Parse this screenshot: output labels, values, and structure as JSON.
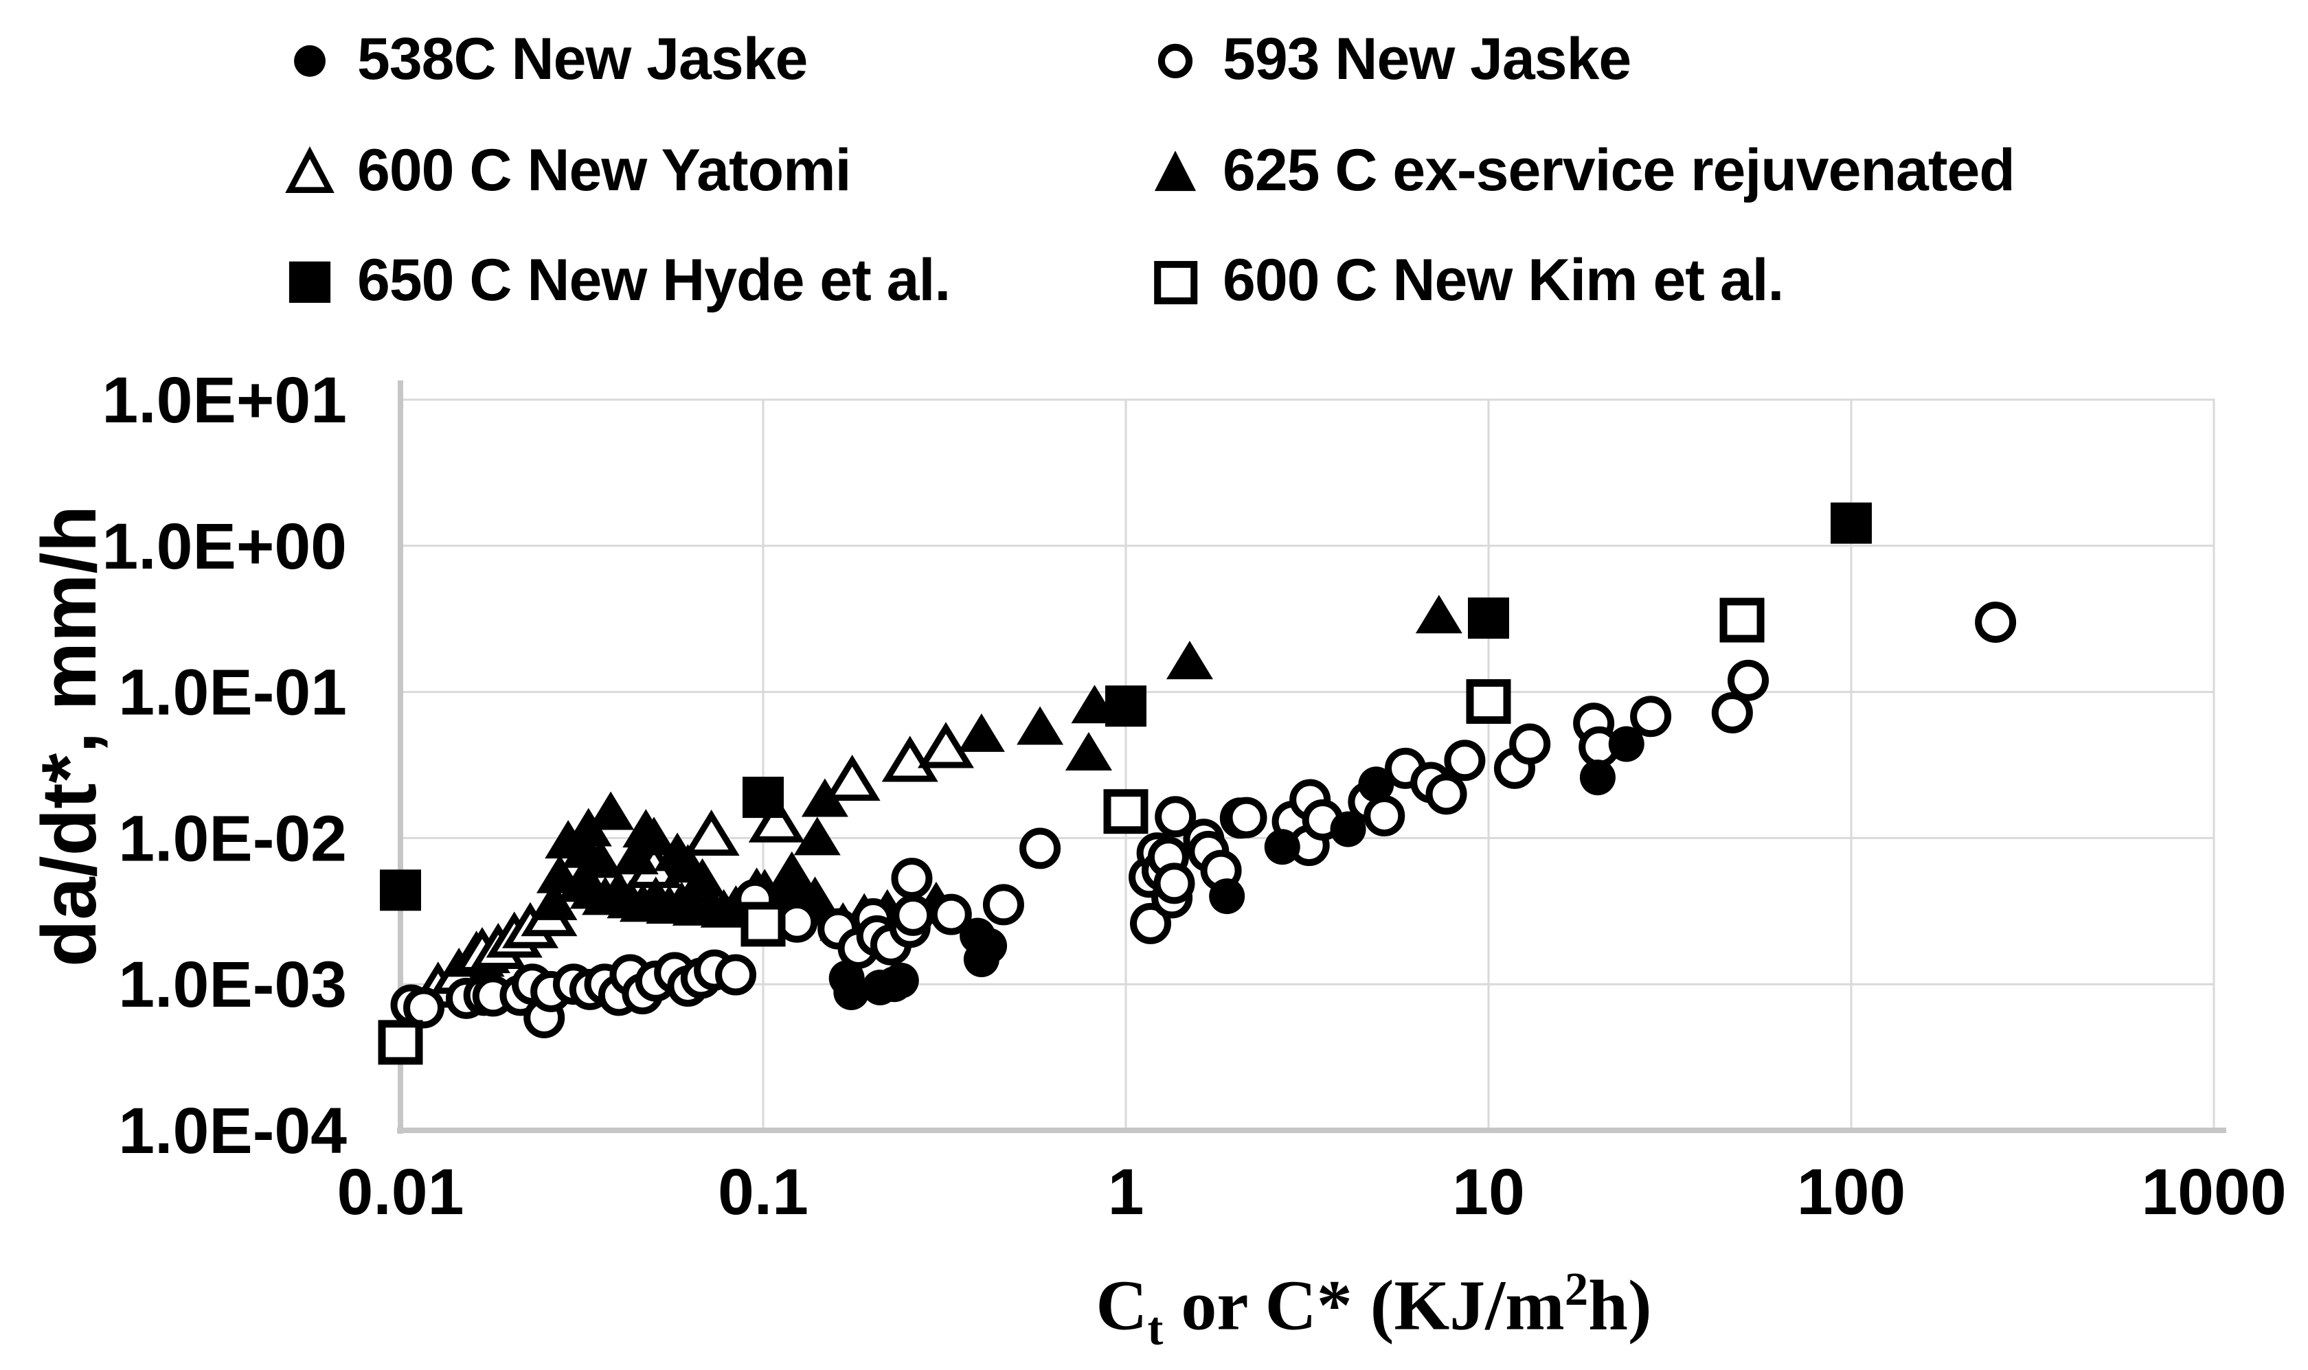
{
  "legend": {
    "items": [
      {
        "label": "538C New Jaske",
        "marker": "filled-circle"
      },
      {
        "label": "593 New Jaske",
        "marker": "open-circle"
      },
      {
        "label": "600 C New Yatomi",
        "marker": "open-triangle"
      },
      {
        "label": "625 C ex-service rejuvenated",
        "marker": "filled-triangle"
      },
      {
        "label": "650 C New Hyde et al.",
        "marker": "filled-square"
      },
      {
        "label": "600 C New Kim et al.",
        "marker": "open-square"
      }
    ]
  },
  "chart_data": {
    "type": "scatter",
    "title": "",
    "x_axis": {
      "scale": "log",
      "range": [
        0.01,
        1000
      ],
      "ticks": [
        "0.01",
        "0.1",
        "1",
        "10",
        "100",
        "1000"
      ],
      "title_parts": {
        "base": "C",
        "sub": "t",
        "mid": " or C* (KJ/m",
        "sup": "2",
        "end": "h)"
      }
    },
    "y_axis": {
      "scale": "log",
      "range": [
        0.0001,
        10
      ],
      "ticks": [
        "1.0E+01",
        "1.0E+00",
        "1.0E-01",
        "1.0E-02",
        "1.0E-03",
        "1.0E-04"
      ],
      "title": "da/dt*, mm/h"
    },
    "grid": true,
    "legend_position": "top",
    "colors": {
      "marker": "#000000",
      "gridline": "#d9d9d9",
      "axis_line": "#c6c6c6",
      "text": "#000000"
    },
    "series": [
      {
        "name": "538C New Jaske",
        "marker": "filled-circle",
        "points": [
          [
            0.17,
            0.0011
          ],
          [
            0.175,
            0.00088
          ],
          [
            0.21,
            0.00095
          ],
          [
            0.23,
            0.001
          ],
          [
            0.24,
            0.00106
          ],
          [
            0.39,
            0.00215
          ],
          [
            0.4,
            0.00148
          ],
          [
            0.42,
            0.00183
          ],
          [
            1.9,
            0.004
          ],
          [
            2.7,
            0.0087
          ],
          [
            4.1,
            0.0115
          ],
          [
            4.9,
            0.0233
          ],
          [
            20,
            0.026
          ],
          [
            24,
            0.044
          ]
        ]
      },
      {
        "name": "593 New Jaske",
        "marker": "open-circle",
        "points": [
          [
            0.0107,
            0.00072
          ],
          [
            0.0116,
            0.00069
          ],
          [
            0.0152,
            0.0008
          ],
          [
            0.017,
            0.00084
          ],
          [
            0.018,
            0.00083
          ],
          [
            0.0214,
            0.00084
          ],
          [
            0.0231,
            0.001
          ],
          [
            0.0249,
            0.00059
          ],
          [
            0.026,
            0.00089
          ],
          [
            0.03,
            0.001
          ],
          [
            0.0333,
            0.00092
          ],
          [
            0.0366,
            0.001
          ],
          [
            0.04,
            0.00084
          ],
          [
            0.043,
            0.00116
          ],
          [
            0.0465,
            0.00086
          ],
          [
            0.0506,
            0.00105
          ],
          [
            0.057,
            0.0012
          ],
          [
            0.062,
            0.00097
          ],
          [
            0.0675,
            0.0011
          ],
          [
            0.0734,
            0.00125
          ],
          [
            0.084,
            0.00116
          ],
          [
            0.095,
            0.0038
          ],
          [
            0.124,
            0.00266
          ],
          [
            0.161,
            0.00239
          ],
          [
            0.183,
            0.00176
          ],
          [
            0.201,
            0.0028
          ],
          [
            0.206,
            0.00214
          ],
          [
            0.225,
            0.00186
          ],
          [
            0.254,
            0.00245
          ],
          [
            0.257,
            0.0053
          ],
          [
            0.259,
            0.00296
          ],
          [
            0.33,
            0.003
          ],
          [
            0.46,
            0.0035
          ],
          [
            0.58,
            0.0085
          ],
          [
            1.16,
            0.0054
          ],
          [
            1.17,
            0.0026
          ],
          [
            1.22,
            0.0079
          ],
          [
            1.26,
            0.006
          ],
          [
            1.31,
            0.0074
          ],
          [
            1.34,
            0.0039
          ],
          [
            1.36,
            0.0049
          ],
          [
            1.37,
            0.014
          ],
          [
            1.64,
            0.0098
          ],
          [
            1.69,
            0.0081
          ],
          [
            1.83,
            0.006
          ],
          [
            2.07,
            0.0137
          ],
          [
            2.15,
            0.0138
          ],
          [
            2.88,
            0.013
          ],
          [
            3.2,
            0.0089
          ],
          [
            3.22,
            0.0183
          ],
          [
            3.49,
            0.0133
          ],
          [
            4.67,
            0.0177
          ],
          [
            5.16,
            0.0142
          ],
          [
            5.9,
            0.03
          ],
          [
            6.94,
            0.024
          ],
          [
            7.65,
            0.02
          ],
          [
            8.6,
            0.034
          ],
          [
            11.8,
            0.03
          ],
          [
            13,
            0.044
          ],
          [
            19.5,
            0.061
          ],
          [
            20.2,
            0.042
          ],
          [
            28,
            0.068
          ],
          [
            47,
            0.072
          ],
          [
            52,
            0.12
          ],
          [
            250,
            0.3
          ]
        ]
      },
      {
        "name": "600 C New Yatomi",
        "marker": "open-triangle",
        "points": [
          [
            0.0127,
            0.00094
          ],
          [
            0.0145,
            0.00117
          ],
          [
            0.0162,
            0.00153
          ],
          [
            0.0168,
            0.00162
          ],
          [
            0.0186,
            0.00173
          ],
          [
            0.0206,
            0.00207
          ],
          [
            0.0228,
            0.0024
          ],
          [
            0.0257,
            0.0029
          ],
          [
            0.05,
            0.0062
          ],
          [
            0.072,
            0.0103
          ],
          [
            0.109,
            0.0127
          ],
          [
            0.176,
            0.0245
          ],
          [
            0.254,
            0.033
          ],
          [
            0.319,
            0.041
          ]
        ]
      },
      {
        "name": "625 C ex-service rejuvenated",
        "marker": "filled-triangle",
        "points": [
          [
            0.0265,
            0.0036
          ],
          [
            0.0275,
            0.0055
          ],
          [
            0.029,
            0.0095
          ],
          [
            0.0314,
            0.0048
          ],
          [
            0.0323,
            0.0082
          ],
          [
            0.033,
            0.0115
          ],
          [
            0.034,
            0.0043
          ],
          [
            0.0356,
            0.007
          ],
          [
            0.0367,
            0.0039
          ],
          [
            0.038,
            0.0149
          ],
          [
            0.04,
            0.0043
          ],
          [
            0.043,
            0.0037
          ],
          [
            0.0444,
            0.0074
          ],
          [
            0.0466,
            0.0035
          ],
          [
            0.0475,
            0.0113
          ],
          [
            0.05,
            0.01
          ],
          [
            0.0506,
            0.0039
          ],
          [
            0.0551,
            0.0034
          ],
          [
            0.058,
            0.0078
          ],
          [
            0.0596,
            0.0036
          ],
          [
            0.062,
            0.0065
          ],
          [
            0.0652,
            0.0033
          ],
          [
            0.068,
            0.0052
          ],
          [
            0.0714,
            0.0035
          ],
          [
            0.0779,
            0.0032
          ],
          [
            0.0841,
            0.0034
          ],
          [
            0.09,
            0.0036
          ],
          [
            0.096,
            0.0045
          ],
          [
            0.101,
            0.0044
          ],
          [
            0.11,
            0.0034
          ],
          [
            0.115,
            0.0042
          ],
          [
            0.12,
            0.0058
          ],
          [
            0.126,
            0.0039
          ],
          [
            0.139,
            0.0039
          ],
          [
            0.141,
            0.01
          ],
          [
            0.143,
            0.0033
          ],
          [
            0.148,
            0.0183
          ],
          [
            0.166,
            0.0026
          ],
          [
            0.19,
            0.003
          ],
          [
            0.22,
            0.0032
          ],
          [
            0.26,
            0.0034
          ],
          [
            0.3,
            0.0036
          ],
          [
            0.4,
            0.051
          ],
          [
            0.58,
            0.057
          ],
          [
            0.79,
            0.038
          ],
          [
            0.82,
            0.08
          ],
          [
            1.5,
            0.16
          ],
          [
            7.3,
            0.33
          ]
        ]
      },
      {
        "name": "650 C New Hyde et al.",
        "marker": "filled-square",
        "points": [
          [
            0.01,
            0.0044
          ],
          [
            0.1,
            0.019
          ],
          [
            1.0,
            0.08
          ],
          [
            10,
            0.32
          ],
          [
            100,
            1.43
          ]
        ]
      },
      {
        "name": "600 C New Kim et al.",
        "marker": "open-square",
        "points": [
          [
            0.01,
            0.0004
          ],
          [
            0.1,
            0.00257
          ],
          [
            1.0,
            0.0152
          ],
          [
            10,
            0.086
          ],
          [
            50,
            0.31
          ]
        ]
      }
    ]
  }
}
